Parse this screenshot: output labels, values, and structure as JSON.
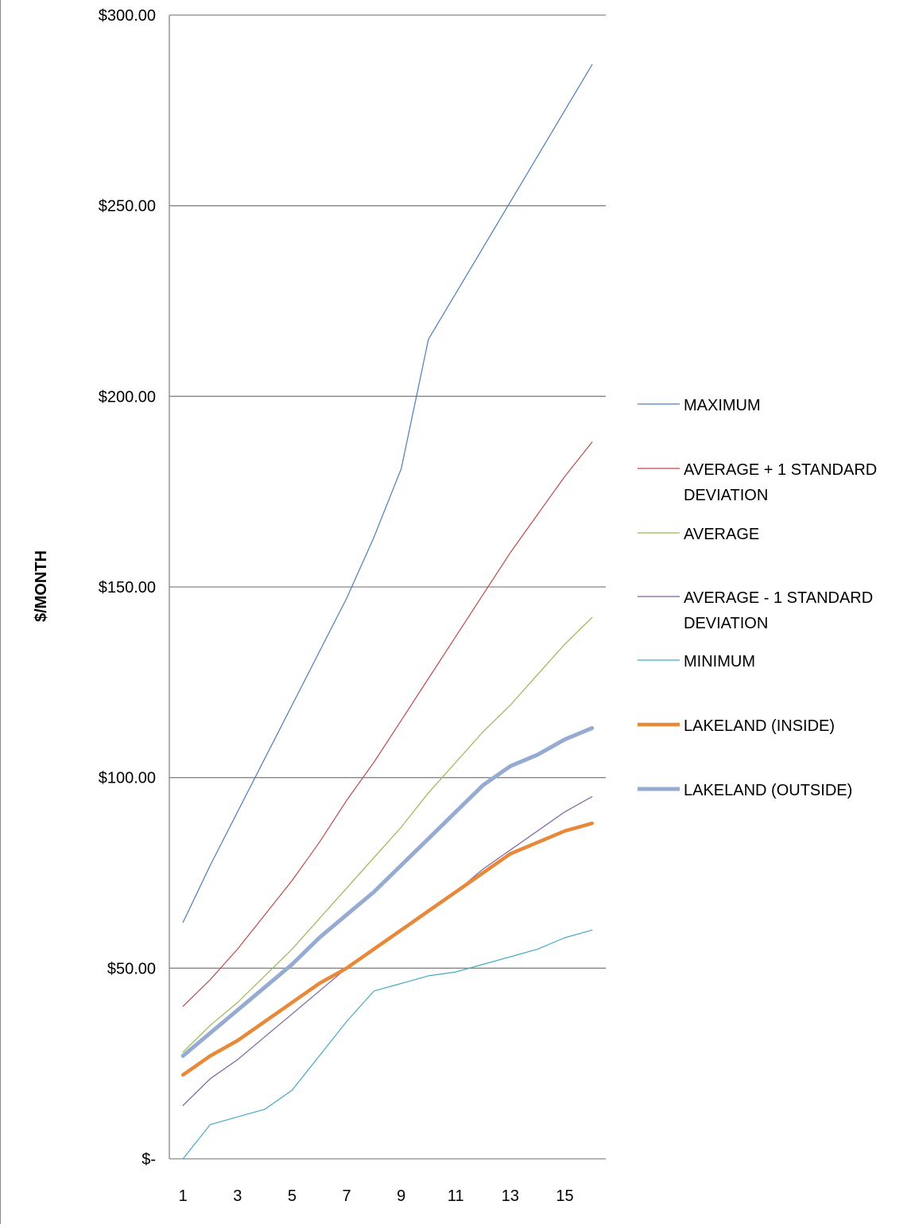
{
  "chart_data": {
    "type": "line",
    "title": "",
    "xlabel": "",
    "ylabel": "$/MONTH",
    "x": [
      1,
      2,
      3,
      4,
      5,
      6,
      7,
      8,
      9,
      10,
      11,
      12,
      13,
      14,
      15,
      16
    ],
    "x_ticks": [
      1,
      3,
      5,
      7,
      9,
      11,
      13,
      15
    ],
    "x_tick_labels": [
      "1",
      "3",
      "5",
      "7",
      "9",
      "11",
      "13",
      "15"
    ],
    "xlim": [
      0.5,
      16.5
    ],
    "ylim": [
      0,
      300
    ],
    "y_ticks": [
      0,
      50,
      100,
      150,
      200,
      250,
      300
    ],
    "y_tick_labels": [
      "$-",
      "$50.00",
      "$100.00",
      "$150.00",
      "$200.00",
      "$250.00",
      "$300.00"
    ],
    "grid": "horizontal",
    "legend_position": "right",
    "series": [
      {
        "name": "MAXIMUM",
        "color": "#4a7ebb",
        "width": 1.2,
        "values": [
          62,
          77,
          91,
          105,
          119,
          133,
          147,
          163,
          181,
          215,
          227,
          239,
          251,
          263,
          275,
          287
        ]
      },
      {
        "name": "AVERAGE + 1 STANDARD DEVIATION",
        "color": "#be4b48",
        "width": 1.2,
        "values": [
          40,
          47,
          55,
          64,
          73,
          83,
          94,
          104,
          115,
          126,
          137,
          148,
          159,
          169,
          179,
          188
        ]
      },
      {
        "name": "AVERAGE",
        "color": "#98b954",
        "width": 1.2,
        "values": [
          28,
          35,
          41,
          48,
          55,
          63,
          71,
          79,
          87,
          96,
          104,
          112,
          119,
          127,
          135,
          142
        ]
      },
      {
        "name": "AVERAGE - 1 STANDARD DEVIATION",
        "color": "#7d60a0",
        "width": 1.2,
        "values": [
          14,
          21,
          26,
          32,
          38,
          44,
          50,
          55,
          60,
          65,
          70,
          76,
          81,
          86,
          91,
          95
        ]
      },
      {
        "name": "MINIMUM",
        "color": "#46aac4",
        "width": 1.2,
        "values": [
          0,
          9,
          11,
          13,
          18,
          27,
          36,
          44,
          46,
          48,
          49,
          51,
          53,
          55,
          58,
          60
        ]
      },
      {
        "name": "LAKELAND (INSIDE)",
        "color": "#e8893a",
        "width": 4.5,
        "values": [
          22,
          27,
          31,
          36,
          41,
          46,
          50,
          55,
          60,
          65,
          70,
          75,
          80,
          83,
          86,
          88
        ]
      },
      {
        "name": "LAKELAND (OUTSIDE)",
        "color": "#95abd1",
        "width": 5,
        "values": [
          27,
          33,
          39,
          45,
          51,
          58,
          64,
          70,
          77,
          84,
          91,
          98,
          103,
          106,
          110,
          113
        ]
      }
    ],
    "legend": [
      {
        "lines": [
          "MAXIMUM"
        ]
      },
      {
        "lines": [
          "AVERAGE + 1 STANDARD",
          "DEVIATION"
        ]
      },
      {
        "lines": [
          "AVERAGE"
        ]
      },
      {
        "lines": [
          "AVERAGE - 1 STANDARD",
          "DEVIATION"
        ]
      },
      {
        "lines": [
          "MINIMUM"
        ]
      },
      {
        "lines": [
          "LAKELAND (INSIDE)"
        ]
      },
      {
        "lines": [
          "LAKELAND (OUTSIDE)"
        ]
      }
    ]
  }
}
